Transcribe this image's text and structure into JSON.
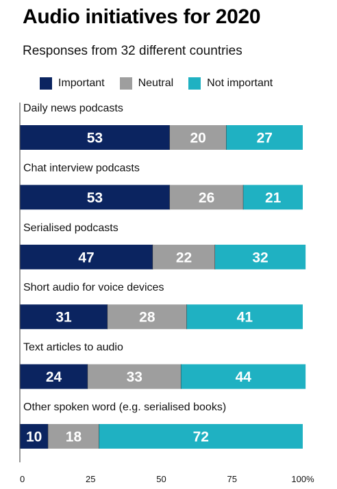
{
  "colors": {
    "important": "#0b2460",
    "neutral": "#9e9e9e",
    "not_important": "#1fb1c2",
    "separator": "#333333",
    "axis": "#555555"
  },
  "chart_data": {
    "type": "bar",
    "orientation": "horizontal",
    "stacked": true,
    "title": "Audio initiatives for 2020",
    "subtitle": "Responses from 32 different countries",
    "legend_position": "top",
    "categories": [
      "Daily news podcasts",
      "Chat interview podcasts",
      "Serialised podcasts",
      "Short audio for voice devices",
      "Text articles to audio",
      "Other spoken word (e.g. serialised books)"
    ],
    "series": [
      {
        "name": "Important",
        "values": [
          53,
          53,
          47,
          31,
          24,
          10
        ]
      },
      {
        "name": "Neutral",
        "values": [
          20,
          26,
          22,
          28,
          33,
          18
        ]
      },
      {
        "name": "Not important",
        "values": [
          27,
          21,
          32,
          41,
          44,
          72
        ]
      }
    ],
    "x_ticks": [
      "0",
      "25",
      "50",
      "75",
      "100%"
    ],
    "xlim": [
      0,
      100
    ],
    "grid": false
  }
}
